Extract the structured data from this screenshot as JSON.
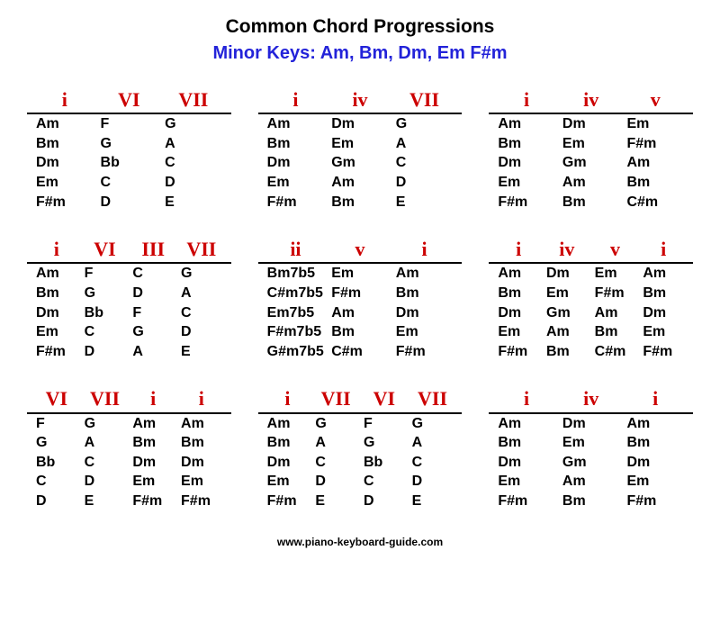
{
  "title": "Common Chord Progressions",
  "subtitle": "Minor Keys: Am, Bm, Dm, Em F#m",
  "subtitle_color": "#2323d9",
  "header_color": "#cc0000",
  "footer": "www.piano-keyboard-guide.com",
  "blocks": [
    {
      "headers": [
        "i",
        "VI",
        "VII"
      ],
      "rows": [
        [
          "Am",
          "F",
          "G"
        ],
        [
          "Bm",
          "G",
          "A"
        ],
        [
          "Dm",
          "Bb",
          "C"
        ],
        [
          "Em",
          "C",
          "D"
        ],
        [
          "F#m",
          "D",
          "E"
        ]
      ]
    },
    {
      "headers": [
        "i",
        "iv",
        "VII"
      ],
      "rows": [
        [
          "Am",
          "Dm",
          "G"
        ],
        [
          "Bm",
          "Em",
          "A"
        ],
        [
          "Dm",
          "Gm",
          "C"
        ],
        [
          "Em",
          "Am",
          "D"
        ],
        [
          "F#m",
          "Bm",
          "E"
        ]
      ]
    },
    {
      "headers": [
        "i",
        "iv",
        "v"
      ],
      "rows": [
        [
          "Am",
          "Dm",
          "Em"
        ],
        [
          "Bm",
          "Em",
          "F#m"
        ],
        [
          "Dm",
          "Gm",
          "Am"
        ],
        [
          "Em",
          "Am",
          "Bm"
        ],
        [
          "F#m",
          "Bm",
          "C#m"
        ]
      ]
    },
    {
      "headers": [
        "i",
        "VI",
        "III",
        "VII"
      ],
      "rows": [
        [
          "Am",
          "F",
          "C",
          "G"
        ],
        [
          "Bm",
          "G",
          "D",
          "A"
        ],
        [
          "Dm",
          "Bb",
          "F",
          "C"
        ],
        [
          "Em",
          "C",
          "G",
          "D"
        ],
        [
          "F#m",
          "D",
          "A",
          "E"
        ]
      ]
    },
    {
      "headers": [
        "ii",
        "v",
        "i"
      ],
      "rows": [
        [
          "Bm7b5",
          "Em",
          "Am"
        ],
        [
          "C#m7b5",
          "F#m",
          "Bm"
        ],
        [
          "Em7b5",
          "Am",
          "Dm"
        ],
        [
          "F#m7b5",
          "Bm",
          "Em"
        ],
        [
          "G#m7b5",
          "C#m",
          "F#m"
        ]
      ]
    },
    {
      "headers": [
        "i",
        "iv",
        "v",
        "i"
      ],
      "rows": [
        [
          "Am",
          "Dm",
          "Em",
          "Am"
        ],
        [
          "Bm",
          "Em",
          "F#m",
          "Bm"
        ],
        [
          "Dm",
          "Gm",
          "Am",
          "Dm"
        ],
        [
          "Em",
          "Am",
          "Bm",
          "Em"
        ],
        [
          "F#m",
          "Bm",
          "C#m",
          "F#m"
        ]
      ]
    },
    {
      "headers": [
        "VI",
        "VII",
        "i",
        "i"
      ],
      "rows": [
        [
          "F",
          "G",
          "Am",
          "Am"
        ],
        [
          "G",
          "A",
          "Bm",
          "Bm"
        ],
        [
          "Bb",
          "C",
          "Dm",
          "Dm"
        ],
        [
          "C",
          "D",
          "Em",
          "Em"
        ],
        [
          "D",
          "E",
          "F#m",
          "F#m"
        ]
      ]
    },
    {
      "headers": [
        "i",
        "VII",
        "VI",
        "VII"
      ],
      "rows": [
        [
          "Am",
          "G",
          "F",
          "G"
        ],
        [
          "Bm",
          "A",
          "G",
          "A"
        ],
        [
          "Dm",
          "C",
          "Bb",
          "C"
        ],
        [
          "Em",
          "D",
          "C",
          "D"
        ],
        [
          "F#m",
          "E",
          "D",
          "E"
        ]
      ]
    },
    {
      "headers": [
        "i",
        "iv",
        "i"
      ],
      "rows": [
        [
          "Am",
          "Dm",
          "Am"
        ],
        [
          "Bm",
          "Em",
          "Bm"
        ],
        [
          "Dm",
          "Gm",
          "Dm"
        ],
        [
          "Em",
          "Am",
          "Em"
        ],
        [
          "F#m",
          "Bm",
          "F#m"
        ]
      ]
    }
  ]
}
